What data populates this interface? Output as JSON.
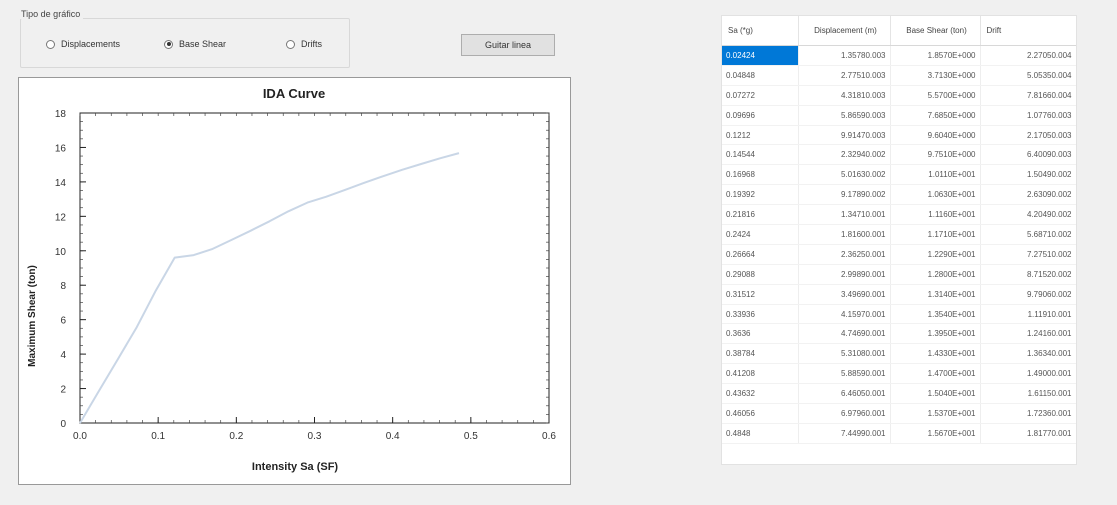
{
  "chart_type": {
    "legend": "Tipo de gráfico",
    "options": [
      {
        "label": "Displacements",
        "selected": false
      },
      {
        "label": "Base Shear",
        "selected": true
      },
      {
        "label": "Drifts",
        "selected": false
      }
    ]
  },
  "save_button": "Guitar linea",
  "table": {
    "headers": [
      "Sa (*g)",
      "Displacement (m)",
      "Base Shear (ton)",
      "Drift"
    ],
    "selected_row": 0,
    "rows": [
      [
        "0.02424",
        "1.35780.003",
        "1.8570E+000",
        "2.27050.004"
      ],
      [
        "0.04848",
        "2.77510.003",
        "3.7130E+000",
        "5.05350.004"
      ],
      [
        "0.07272",
        "4.31810.003",
        "5.5700E+000",
        "7.81660.004"
      ],
      [
        "0.09696",
        "5.86590.003",
        "7.6850E+000",
        "1.07760.003"
      ],
      [
        "0.1212",
        "9.91470.003",
        "9.6040E+000",
        "2.17050.003"
      ],
      [
        "0.14544",
        "2.32940.002",
        "9.7510E+000",
        "6.40090.003"
      ],
      [
        "0.16968",
        "5.01630.002",
        "1.0110E+001",
        "1.50490.002"
      ],
      [
        "0.19392",
        "9.17890.002",
        "1.0630E+001",
        "2.63090.002"
      ],
      [
        "0.21816",
        "1.34710.001",
        "1.1160E+001",
        "4.20490.002"
      ],
      [
        "0.2424",
        "1.81600.001",
        "1.1710E+001",
        "5.68710.002"
      ],
      [
        "0.26664",
        "2.36250.001",
        "1.2290E+001",
        "7.27510.002"
      ],
      [
        "0.29088",
        "2.99890.001",
        "1.2800E+001",
        "8.71520.002"
      ],
      [
        "0.31512",
        "3.49690.001",
        "1.3140E+001",
        "9.79060.002"
      ],
      [
        "0.33936",
        "4.15970.001",
        "1.3540E+001",
        "1.11910.001"
      ],
      [
        "0.3636",
        "4.74690.001",
        "1.3950E+001",
        "1.24160.001"
      ],
      [
        "0.38784",
        "5.31080.001",
        "1.4330E+001",
        "1.36340.001"
      ],
      [
        "0.41208",
        "5.88590.001",
        "1.4700E+001",
        "1.49000.001"
      ],
      [
        "0.43632",
        "6.46050.001",
        "1.5040E+001",
        "1.61150.001"
      ],
      [
        "0.46056",
        "6.97960.001",
        "1.5370E+001",
        "1.72360.001"
      ],
      [
        "0.4848",
        "7.44990.001",
        "1.5670E+001",
        "1.81770.001"
      ]
    ]
  },
  "chart_data": {
    "type": "line",
    "title": "IDA Curve",
    "xlabel": "Intensity Sa (SF)",
    "ylabel": "Maximum Shear (ton)",
    "xlim": [
      0,
      0.6
    ],
    "ylim": [
      0,
      18
    ],
    "xticks": [
      "0.0",
      "0.1",
      "0.2",
      "0.3",
      "0.4",
      "0.5",
      "0.6"
    ],
    "yticks": [
      "0",
      "2",
      "4",
      "6",
      "8",
      "10",
      "12",
      "14",
      "16",
      "18"
    ],
    "series": [
      {
        "color": "#c9d6e6",
        "x": [
          0,
          0.02424,
          0.04848,
          0.07272,
          0.09696,
          0.1212,
          0.14544,
          0.16968,
          0.19392,
          0.21816,
          0.2424,
          0.26664,
          0.29088,
          0.31512,
          0.33936,
          0.3636,
          0.38784,
          0.41208,
          0.43632,
          0.46056,
          0.4848
        ],
        "y": [
          0,
          1.857,
          3.713,
          5.57,
          7.685,
          9.604,
          9.751,
          10.11,
          10.63,
          11.16,
          11.71,
          12.29,
          12.8,
          13.14,
          13.54,
          13.95,
          14.33,
          14.7,
          15.04,
          15.37,
          15.67
        ]
      }
    ]
  }
}
